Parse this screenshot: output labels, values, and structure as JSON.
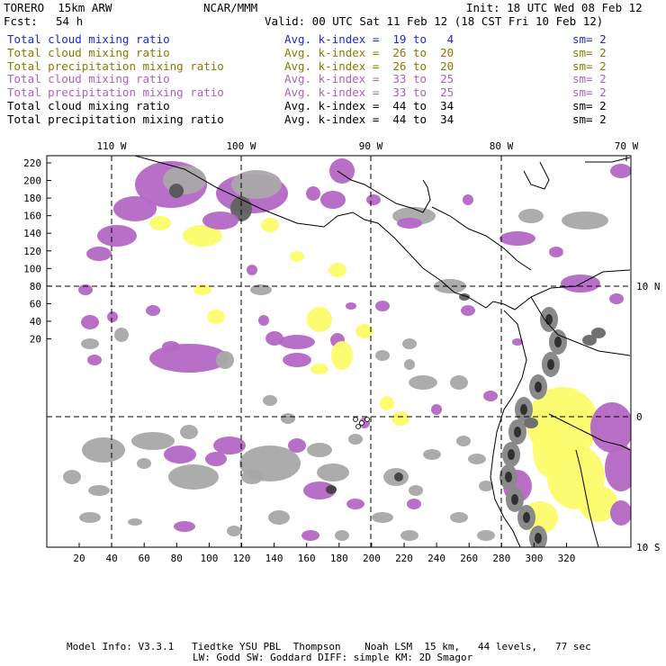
{
  "header": {
    "model": "TORERO  15km ARW",
    "org": "NCAR/MMM",
    "init": "Init: 18 UTC Wed 08 Feb 12",
    "fcst_label": "Fcst:",
    "fcst_value": "54 h",
    "valid": "Valid: 00 UTC Sat 11 Feb 12 (18 CST Fri 10 Feb 12)"
  },
  "legend": [
    {
      "field": "Total cloud mixing ratio",
      "kindex": "Avg. k-index =  19 to   4",
      "sm": "sm= 2",
      "color": "#1a2bd6"
    },
    {
      "field": "Total cloud mixing ratio",
      "kindex": "Avg. k-index =  26 to  20",
      "sm": "sm= 2",
      "color": "#8a7a00"
    },
    {
      "field": "Total precipitation mixing ratio",
      "kindex": "Avg. k-index =  26 to  20",
      "sm": "sm= 2",
      "color": "#8a7a00"
    },
    {
      "field": "Total cloud mixing ratio",
      "kindex": "Avg. k-index =  33 to  25",
      "sm": "sm= 2",
      "color": "#b060c0"
    },
    {
      "field": "Total precipitation mixing ratio",
      "kindex": "Avg. k-index =  33 to  25",
      "sm": "sm= 2",
      "color": "#b060c0"
    },
    {
      "field": "Total cloud mixing ratio",
      "kindex": "Avg. k-index =  44 to  34",
      "sm": "sm= 2",
      "color": "#000000"
    },
    {
      "field": "Total precipitation mixing ratio",
      "kindex": "Avg. k-index =  44 to  34",
      "sm": "sm= 2",
      "color": "#000000"
    }
  ],
  "map": {
    "lon_labels": [
      "110 W",
      "100 W",
      "90 W",
      "80 W",
      "70 W"
    ],
    "lat_labels": [
      "10 N",
      "0",
      "10 S"
    ],
    "y_ticks": [
      "220",
      "200",
      "180",
      "160",
      "140",
      "120",
      "100",
      "80",
      "60",
      "40",
      "20"
    ],
    "x_ticks": [
      "20",
      "40",
      "60",
      "80",
      "100",
      "120",
      "140",
      "160",
      "180",
      "200",
      "220",
      "240",
      "260",
      "280",
      "300",
      "320"
    ],
    "colors": {
      "gray": "#a8a8a8",
      "purple": "#b467c4",
      "yellow": "#fcfc6c",
      "cyan": "#d8f4fc"
    }
  },
  "footer": {
    "line1": "Model Info: V3.3.1   Tiedtke YSU PBL  Thompson    Noah LSM  15 km,   44 levels,   77 sec",
    "line2": "LW: Godd SW: Goddard DIFF: simple KM: 2D Smagor"
  }
}
